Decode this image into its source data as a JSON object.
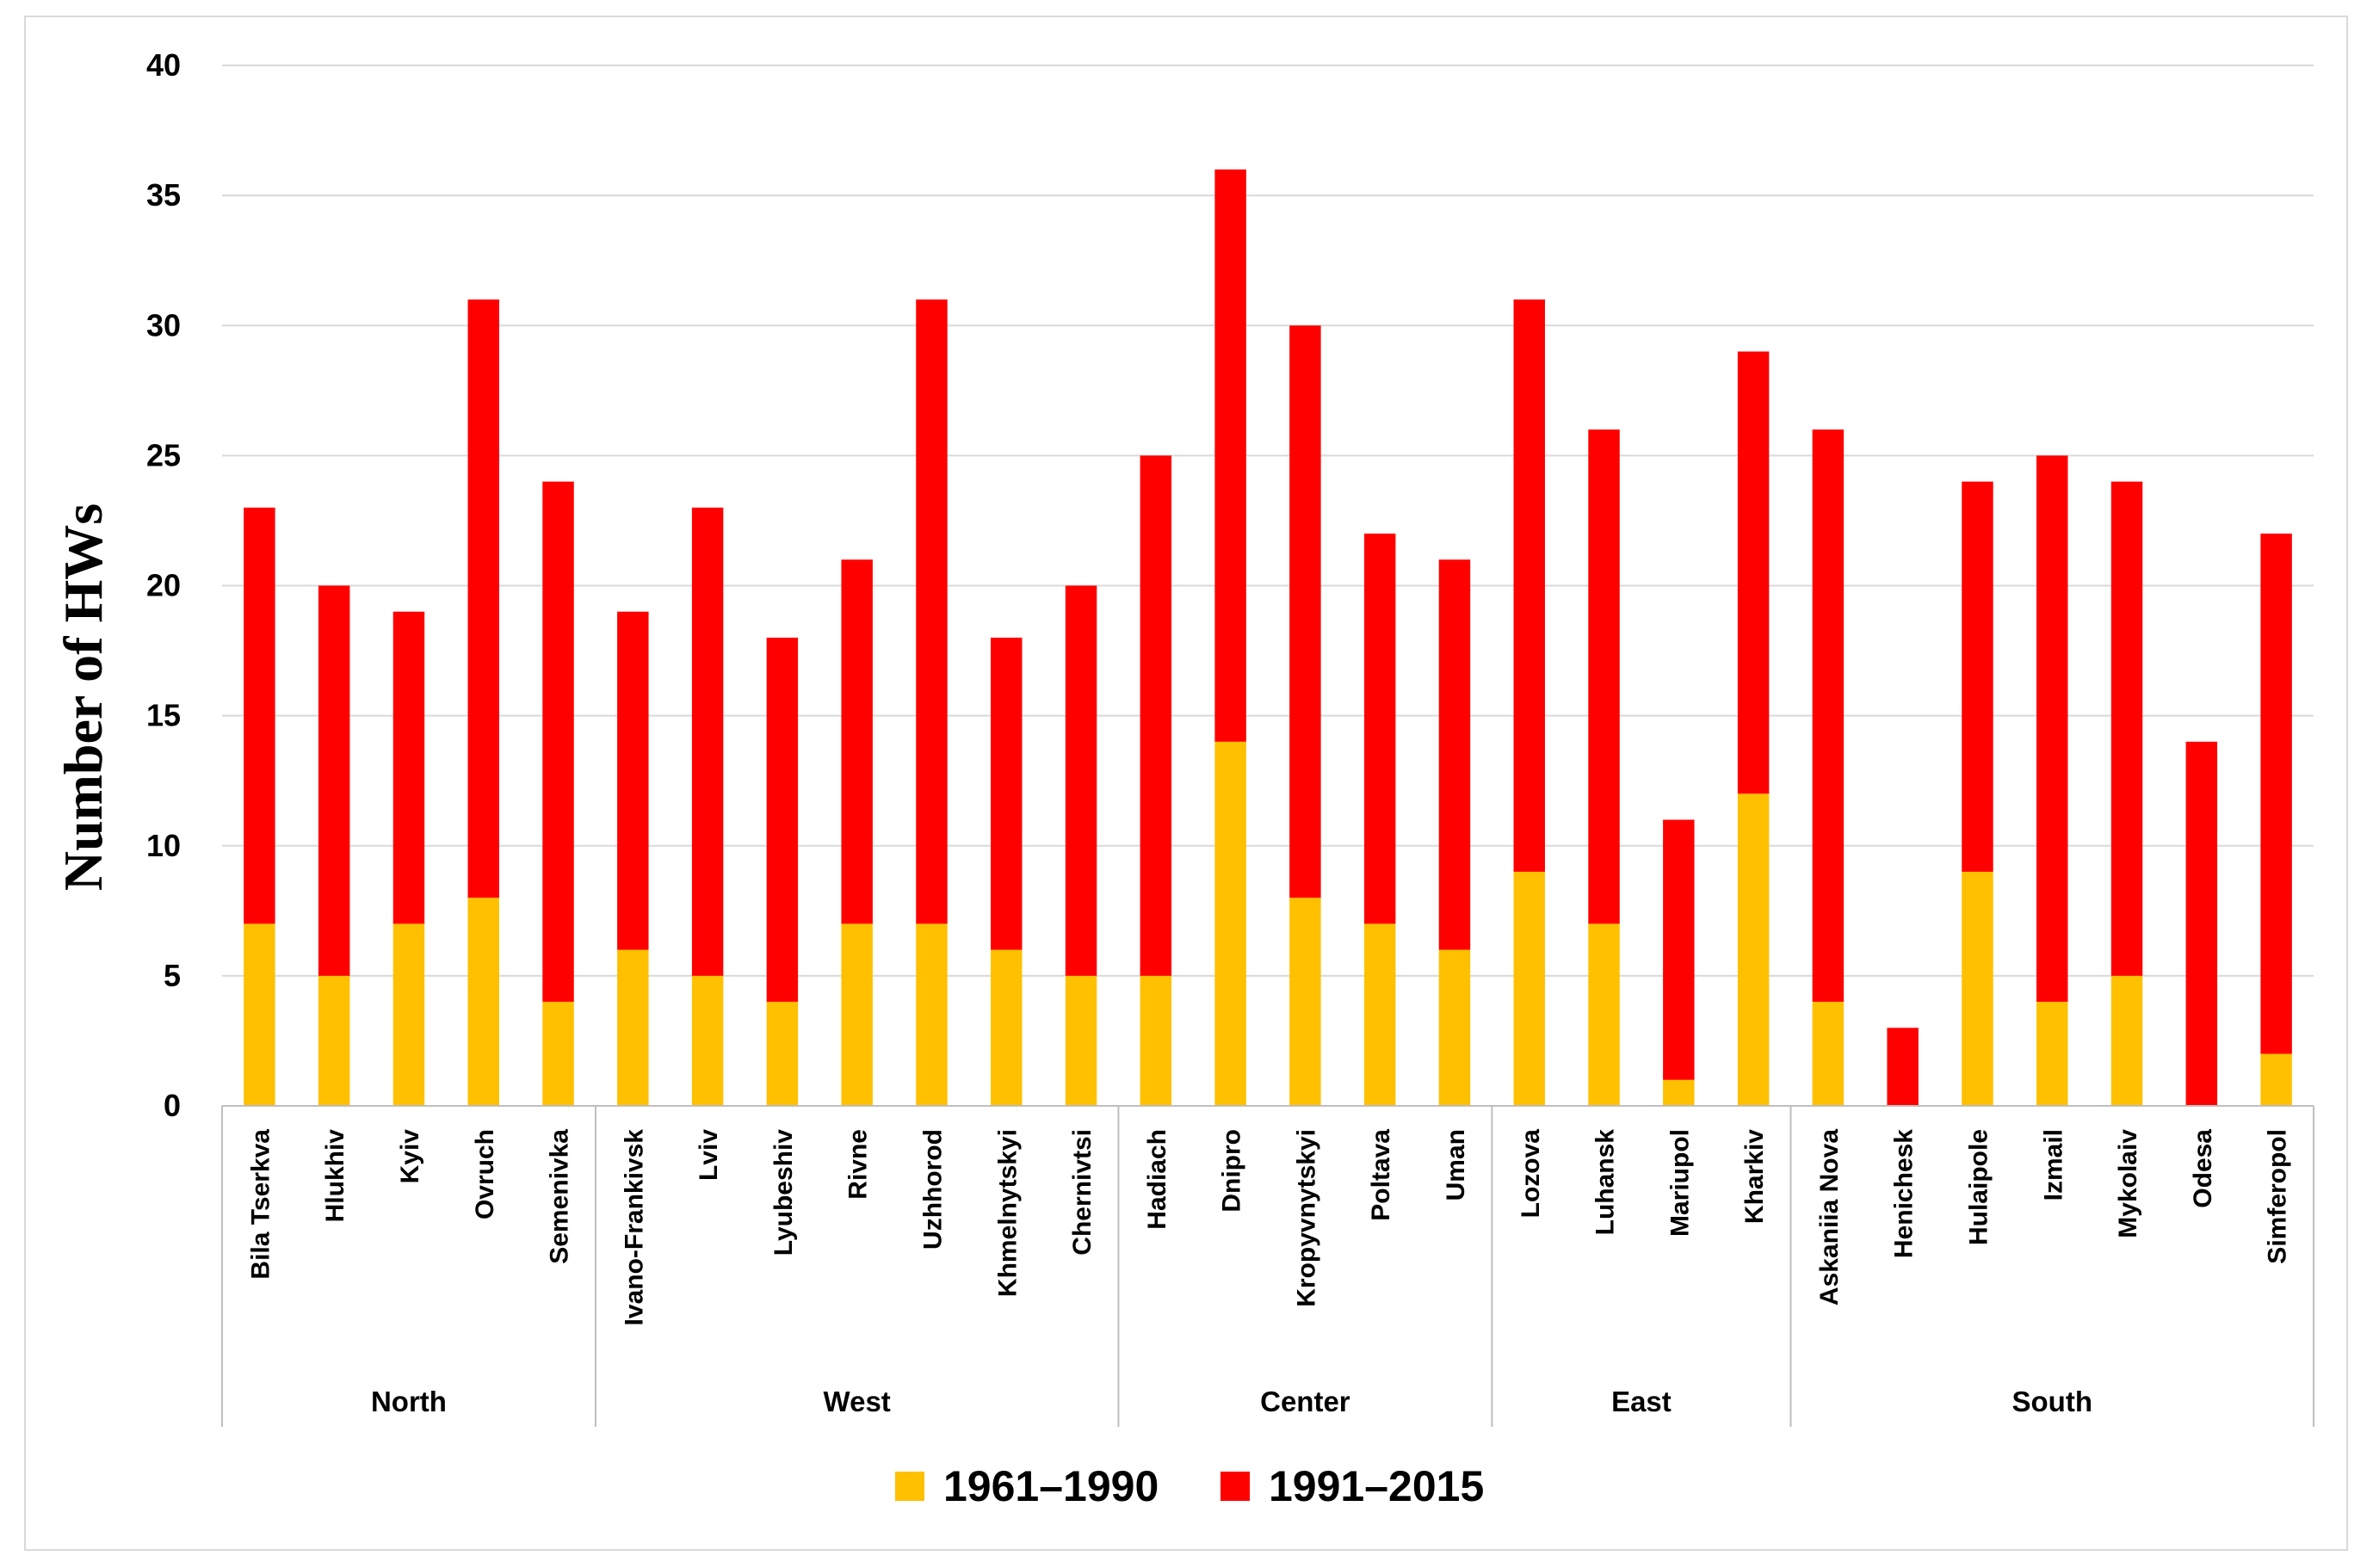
{
  "chart_data": {
    "type": "bar",
    "stacked": true,
    "title": "",
    "xlabel": "",
    "ylabel": "Number of HWs",
    "ylim": [
      0,
      40
    ],
    "yticks": [
      0,
      5,
      10,
      15,
      20,
      25,
      30,
      35,
      40
    ],
    "grid": true,
    "legend_position": "bottom",
    "categories": [
      "Bila Tserkva",
      "Hlukhiv",
      "Kyiv",
      "Ovruch",
      "Semenivka",
      "Ivano-Frankivsk",
      "Lviv",
      "Lyubeshiv",
      "Rivne",
      "Uzhhorod",
      "Khmelnytskyi",
      "Chernivtsi",
      "Hadiach",
      "Dnipro",
      "Kropyvnytskyi",
      "Poltava",
      "Uman",
      "Lozova",
      "Luhansk",
      "Mariupol",
      "Kharkiv",
      "Askaniia Nova",
      "Henichesk",
      "Hulaipole",
      "Izmail",
      "Mykolaiv",
      "Odesa",
      "Simferopol"
    ],
    "groups": [
      {
        "name": "North",
        "count": 5
      },
      {
        "name": "West",
        "count": 7
      },
      {
        "name": "Center",
        "count": 5
      },
      {
        "name": "East",
        "count": 4
      },
      {
        "name": "South",
        "count": 7
      }
    ],
    "series": [
      {
        "name": "1961–1990",
        "color": "#FFC000",
        "values": [
          7,
          5,
          7,
          8,
          4,
          6,
          5,
          4,
          7,
          7,
          6,
          5,
          5,
          14,
          8,
          7,
          6,
          9,
          7,
          1,
          12,
          4,
          0,
          9,
          4,
          5,
          0,
          2
        ]
      },
      {
        "name": "1991–2015",
        "color": "#FF0000",
        "values": [
          16,
          15,
          12,
          23,
          20,
          13,
          18,
          14,
          14,
          24,
          12,
          15,
          20,
          22,
          22,
          15,
          15,
          22,
          19,
          10,
          17,
          22,
          3,
          15,
          21,
          19,
          14,
          20
        ]
      }
    ]
  }
}
